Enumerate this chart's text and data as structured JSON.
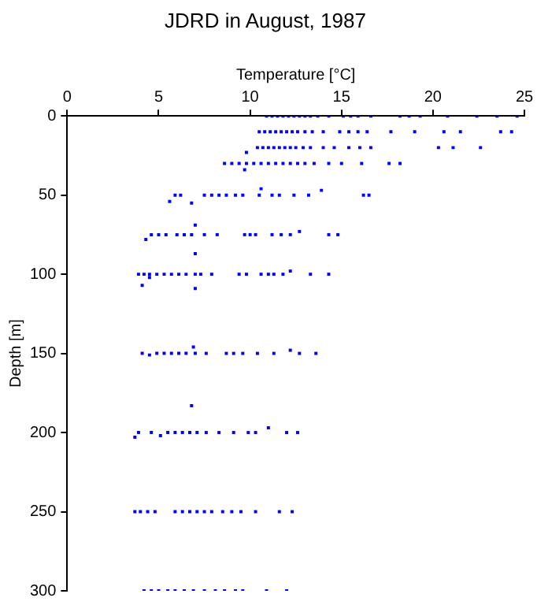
{
  "chart_data": {
    "type": "scatter",
    "title": "JDRD in August, 1987",
    "xlabel": "Temperature [°C]",
    "ylabel": "Depth [m]",
    "xlim": [
      0,
      25
    ],
    "xticks": [
      0,
      5,
      10,
      15,
      20,
      25
    ],
    "ylim": [
      300,
      0
    ],
    "yticks": [
      0,
      50,
      100,
      150,
      200,
      250,
      300
    ],
    "grid": false,
    "legend": false,
    "marker": "square",
    "series": [
      {
        "color": "#0000ff",
        "x": [
          10.9,
          11.2,
          11.5,
          11.8,
          12.1,
          12.4,
          12.7,
          13.0,
          13.3,
          13.7,
          14.3,
          15.1,
          15.5,
          15.9,
          16.6,
          18.2,
          18.7,
          19.3,
          20.8,
          22.4,
          23.5,
          24.6,
          10.5,
          10.8,
          11.1,
          11.4,
          11.7,
          12.0,
          12.3,
          12.6,
          13.0,
          13.4,
          14.0,
          14.9,
          15.4,
          15.9,
          16.4,
          17.7,
          19.0,
          20.6,
          21.5,
          23.7,
          24.3,
          9.8,
          10.4,
          10.7,
          11.0,
          11.3,
          11.6,
          11.9,
          12.2,
          12.5,
          12.9,
          13.3,
          14.0,
          14.6,
          15.4,
          16.0,
          16.6,
          20.3,
          21.1,
          22.6,
          8.6,
          9.0,
          9.4,
          9.8,
          10.2,
          10.6,
          11.0,
          11.4,
          11.8,
          12.2,
          12.6,
          13.0,
          13.5,
          14.3,
          15.0,
          16.1,
          17.6,
          18.2,
          9.7,
          5.6,
          5.9,
          6.2,
          6.8,
          7.5,
          7.9,
          8.3,
          8.7,
          9.2,
          9.6,
          10.5,
          10.6,
          11.2,
          11.6,
          12.4,
          13.2,
          13.9,
          16.2,
          16.5,
          4.3,
          4.6,
          5.0,
          5.4,
          6.0,
          6.4,
          6.8,
          7.0,
          7.5,
          8.2,
          9.7,
          10.0,
          10.3,
          11.2,
          11.7,
          12.2,
          12.7,
          14.3,
          14.8,
          7.0,
          3.9,
          4.2,
          4.5,
          4.9,
          5.3,
          5.7,
          6.1,
          6.5,
          7.0,
          7.3,
          7.9,
          9.4,
          9.8,
          10.6,
          11.0,
          11.3,
          11.8,
          12.2,
          13.3,
          14.3,
          4.1,
          4.5,
          7.0,
          6.9,
          4.1,
          4.5,
          4.9,
          5.3,
          5.7,
          6.1,
          6.5,
          7.0,
          7.6,
          8.7,
          9.1,
          9.6,
          10.4,
          11.3,
          12.2,
          12.7,
          13.6,
          6.8,
          3.7,
          3.9,
          4.6,
          5.1,
          5.5,
          5.9,
          6.3,
          6.7,
          7.1,
          7.6,
          8.3,
          9.1,
          9.9,
          10.3,
          11.0,
          12.0,
          12.6,
          3.7,
          4.0,
          4.4,
          4.8,
          5.9,
          6.3,
          6.7,
          7.1,
          7.5,
          7.9,
          8.5,
          9.0,
          9.5,
          10.3,
          11.6,
          12.3,
          4.2,
          4.6,
          5.0,
          5.5,
          5.9,
          6.4,
          6.9,
          7.5,
          8.1,
          8.6,
          9.2,
          9.6,
          10.9,
          12.0
        ],
        "values": [
          0,
          0,
          0,
          0,
          0,
          0,
          0,
          0,
          0,
          0,
          0,
          0,
          0,
          0,
          0,
          0,
          0,
          0,
          0,
          0,
          0,
          0,
          10,
          10,
          10,
          10,
          10,
          10,
          10,
          10,
          10,
          10,
          10,
          10,
          10,
          10,
          10,
          10,
          10,
          10,
          10,
          10,
          10,
          23,
          20,
          20,
          20,
          20,
          20,
          20,
          20,
          20,
          20,
          20,
          20,
          20,
          20,
          20,
          20,
          20,
          20,
          20,
          30,
          30,
          30,
          30,
          30,
          30,
          30,
          30,
          30,
          30,
          30,
          30,
          30,
          30,
          30,
          30,
          30,
          30,
          34,
          54,
          50,
          50,
          55,
          50,
          50,
          50,
          50,
          50,
          50,
          50,
          46,
          50,
          50,
          50,
          50,
          47,
          50,
          50,
          78,
          75,
          75,
          75,
          75,
          75,
          75,
          69,
          75,
          75,
          75,
          75,
          75,
          75,
          75,
          75,
          73,
          75,
          75,
          87,
          100,
          100,
          100,
          100,
          100,
          100,
          100,
          100,
          100,
          100,
          100,
          100,
          100,
          100,
          100,
          100,
          100,
          98,
          100,
          100,
          107,
          102,
          109,
          146,
          150,
          151,
          150,
          150,
          150,
          150,
          150,
          150,
          150,
          150,
          150,
          150,
          150,
          150,
          148,
          150,
          150,
          183,
          203,
          200,
          200,
          202,
          200,
          200,
          200,
          200,
          200,
          200,
          200,
          200,
          200,
          200,
          197,
          200,
          200,
          250,
          250,
          250,
          250,
          250,
          250,
          250,
          250,
          250,
          250,
          250,
          250,
          250,
          250,
          250,
          250,
          300,
          300,
          300,
          300,
          300,
          300,
          300,
          300,
          300,
          300,
          300,
          300,
          300,
          300
        ]
      }
    ]
  }
}
